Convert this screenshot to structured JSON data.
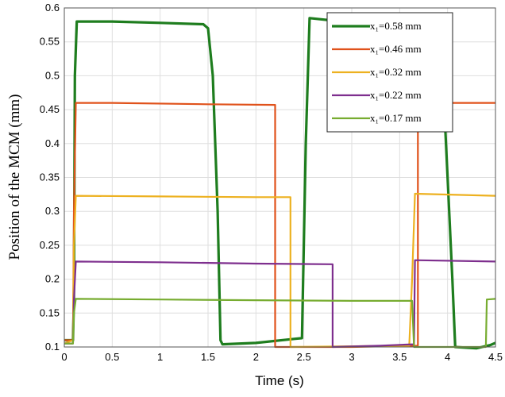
{
  "chart_data": {
    "type": "line",
    "xlabel": "Time (s)",
    "ylabel": "Position of the MCM (mm)",
    "xlim": [
      0,
      4.5
    ],
    "ylim": [
      0.1,
      0.6
    ],
    "xticks": [
      "0",
      "0.5",
      "1",
      "1.5",
      "2",
      "2.5",
      "3",
      "3.5",
      "4",
      "4.5"
    ],
    "yticks": [
      "0.1",
      "0.15",
      "0.2",
      "0.25",
      "0.3",
      "0.35",
      "0.4",
      "0.45",
      "0.5",
      "0.55",
      "0.6"
    ],
    "grid": true,
    "legend_position": "top-right",
    "series": [
      {
        "name": "x₁=0.58 mm",
        "color": "#1e7d1e",
        "width": 3.2,
        "points": [
          [
            0,
            0.11
          ],
          [
            0.09,
            0.11
          ],
          [
            0.1,
            0.17
          ],
          [
            0.11,
            0.5
          ],
          [
            0.13,
            0.58
          ],
          [
            0.5,
            0.58
          ],
          [
            1.0,
            0.578
          ],
          [
            1.45,
            0.576
          ],
          [
            1.5,
            0.57
          ],
          [
            1.55,
            0.5
          ],
          [
            1.6,
            0.3
          ],
          [
            1.63,
            0.11
          ],
          [
            1.65,
            0.104
          ],
          [
            2.0,
            0.106
          ],
          [
            2.4,
            0.112
          ],
          [
            2.48,
            0.113
          ],
          [
            2.52,
            0.4
          ],
          [
            2.56,
            0.585
          ],
          [
            2.9,
            0.58
          ],
          [
            3.3,
            0.578
          ],
          [
            3.7,
            0.578
          ],
          [
            3.85,
            0.575
          ],
          [
            3.9,
            0.55
          ],
          [
            3.95,
            0.5
          ],
          [
            4.0,
            0.35
          ],
          [
            4.05,
            0.2
          ],
          [
            4.08,
            0.1
          ],
          [
            4.3,
            0.098
          ],
          [
            4.45,
            0.103
          ],
          [
            4.5,
            0.106
          ]
        ]
      },
      {
        "name": "x₁=0.46 mm",
        "color": "#e0521b",
        "width": 2.2,
        "points": [
          [
            0,
            0.11
          ],
          [
            0.09,
            0.11
          ],
          [
            0.1,
            0.3
          ],
          [
            0.12,
            0.46
          ],
          [
            0.5,
            0.46
          ],
          [
            1.5,
            0.458
          ],
          [
            2.2,
            0.457
          ],
          [
            2.2,
            0.1
          ],
          [
            3.0,
            0.1
          ],
          [
            3.69,
            0.102
          ],
          [
            3.69,
            0.46
          ],
          [
            4.5,
            0.46
          ]
        ]
      },
      {
        "name": "x₁=0.32 mm",
        "color": "#edb120",
        "width": 2.2,
        "points": [
          [
            0,
            0.105
          ],
          [
            0.09,
            0.11
          ],
          [
            0.1,
            0.25
          ],
          [
            0.12,
            0.323
          ],
          [
            1.0,
            0.322
          ],
          [
            2.0,
            0.321
          ],
          [
            2.36,
            0.321
          ],
          [
            2.36,
            0.1
          ],
          [
            3.0,
            0.101
          ],
          [
            3.6,
            0.102
          ],
          [
            3.63,
            0.2
          ],
          [
            3.66,
            0.326
          ],
          [
            4.5,
            0.323
          ]
        ]
      },
      {
        "name": "x₁=0.22 mm",
        "color": "#7e2f8e",
        "width": 2.2,
        "points": [
          [
            0,
            0.105
          ],
          [
            0.09,
            0.105
          ],
          [
            0.1,
            0.17
          ],
          [
            0.12,
            0.226
          ],
          [
            1.0,
            0.225
          ],
          [
            2.0,
            0.223
          ],
          [
            2.8,
            0.222
          ],
          [
            2.8,
            0.1
          ],
          [
            3.3,
            0.102
          ],
          [
            3.65,
            0.104
          ],
          [
            3.66,
            0.228
          ],
          [
            4.5,
            0.226
          ]
        ]
      },
      {
        "name": "x₁=0.17 mm",
        "color": "#77ac30",
        "width": 2.2,
        "points": [
          [
            0,
            0.105
          ],
          [
            0.09,
            0.105
          ],
          [
            0.1,
            0.15
          ],
          [
            0.12,
            0.171
          ],
          [
            1.0,
            0.17
          ],
          [
            2.0,
            0.169
          ],
          [
            3.0,
            0.168
          ],
          [
            3.63,
            0.168
          ],
          [
            3.65,
            0.1
          ],
          [
            4.0,
            0.1
          ],
          [
            4.4,
            0.1
          ],
          [
            4.41,
            0.17
          ],
          [
            4.5,
            0.171
          ]
        ]
      }
    ]
  }
}
